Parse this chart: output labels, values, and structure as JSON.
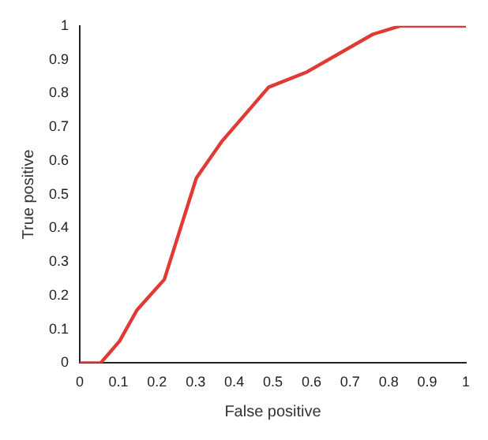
{
  "chart_data": {
    "type": "line",
    "xlabel": "False positive",
    "ylabel": "True positive",
    "x": [
      0,
      0.054,
      0.103,
      0.148,
      0.219,
      0.302,
      0.367,
      0.489,
      0.586,
      0.759,
      0.83,
      1
    ],
    "series": [
      {
        "color": "#e03a35",
        "values": [
          0,
          0,
          0.065,
          0.157,
          0.248,
          0.549,
          0.656,
          0.818,
          0.862,
          0.975,
          1,
          1
        ]
      }
    ],
    "xlim": [
      0,
      1
    ],
    "ylim": [
      0,
      1
    ],
    "xticks": [
      0,
      0.1,
      0.2,
      0.3,
      0.4,
      0.5,
      0.6,
      0.7,
      0.8,
      0.9,
      1
    ],
    "yticks": [
      0,
      0.1,
      0.2,
      0.3,
      0.4,
      0.5,
      0.6,
      0.7,
      0.8,
      0.9,
      1
    ],
    "grid": false,
    "legend": false,
    "marker": "none",
    "line_style": "solid"
  }
}
